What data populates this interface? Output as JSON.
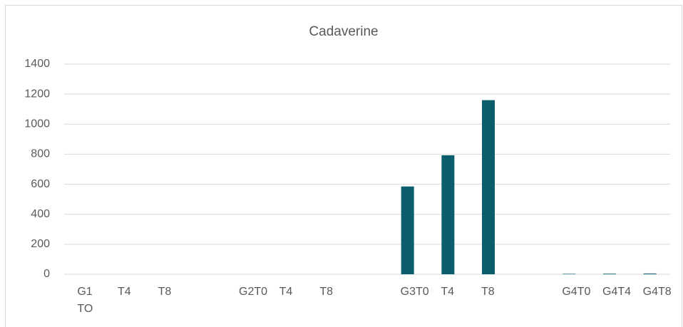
{
  "chart_data": {
    "type": "bar",
    "title": "Cadaverine",
    "categories": [
      "G1 TO",
      "T4",
      "T8",
      null,
      "G2T0",
      "T4",
      "T8",
      null,
      "G3T0",
      "T4",
      "T8",
      null,
      "G4T0",
      "G4T4",
      "G4T8"
    ],
    "values": [
      0,
      0,
      0,
      null,
      0,
      0,
      0,
      null,
      585,
      793,
      1160,
      null,
      3,
      4,
      5
    ],
    "color": "#0b5e6b",
    "ylim": [
      0,
      1400
    ],
    "yticks": [
      0,
      200,
      400,
      600,
      800,
      1000,
      1200,
      1400
    ],
    "grid": true
  }
}
